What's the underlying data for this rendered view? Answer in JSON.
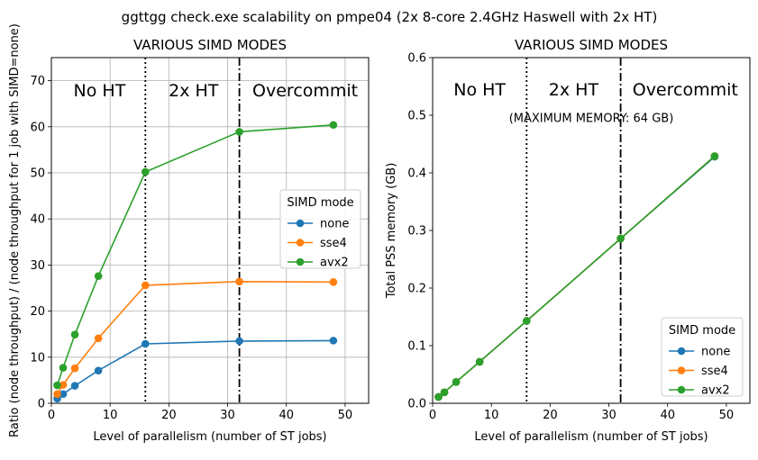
{
  "suptitle": "ggttgg check.exe scalability on pmpe04 (2x 8-core 2.4GHz Haswell with 2x HT)",
  "colors": {
    "none": "#1f77b4",
    "sse4": "#ff7f0e",
    "avx2": "#2ca02c"
  },
  "chart_data": [
    {
      "type": "line",
      "title": "VARIOUS SIMD MODES",
      "xlabel": "Level of parallelism (number of ST jobs)",
      "ylabel": "Ratio (node throughput) / (node throughput for 1 job with SIMD=none)",
      "xlim": [
        0,
        54
      ],
      "ylim": [
        0,
        75
      ],
      "xticks": [
        0,
        10,
        20,
        30,
        40,
        50
      ],
      "yticks": [
        0,
        10,
        20,
        30,
        40,
        50,
        60,
        70
      ],
      "grid": true,
      "legend": {
        "title": "SIMD mode",
        "position": "center-right"
      },
      "vlines": [
        {
          "x": 16,
          "style": "dotted"
        },
        {
          "x": 32,
          "style": "dashdot"
        }
      ],
      "region_labels": [
        {
          "text": "No HT",
          "x": 8.2,
          "y": 68
        },
        {
          "text": "2x HT",
          "x": 24.2,
          "y": 68
        },
        {
          "text": "Overcommit",
          "x": 43.2,
          "y": 68
        }
      ],
      "annotations": [],
      "series": [
        {
          "name": "none",
          "x": [
            1,
            2,
            4,
            8,
            16,
            32,
            48
          ],
          "y": [
            1.0,
            2.0,
            3.8,
            7.1,
            12.9,
            13.5,
            13.6
          ]
        },
        {
          "name": "sse4",
          "x": [
            1,
            2,
            4,
            8,
            16,
            32,
            48
          ],
          "y": [
            2.0,
            4.0,
            7.6,
            14.1,
            25.6,
            26.4,
            26.3
          ]
        },
        {
          "name": "avx2",
          "x": [
            1,
            2,
            4,
            8,
            16,
            32,
            48
          ],
          "y": [
            3.9,
            7.7,
            14.9,
            27.6,
            50.2,
            58.9,
            60.4
          ]
        }
      ]
    },
    {
      "type": "line",
      "title": "VARIOUS SIMD MODES",
      "xlabel": "Level of parallelism (number of ST jobs)",
      "ylabel": "Total PSS memory (GB)",
      "xlim": [
        0,
        54
      ],
      "ylim": [
        0,
        0.6
      ],
      "xticks": [
        0,
        10,
        20,
        30,
        40,
        50
      ],
      "yticks": [
        0.0,
        0.1,
        0.2,
        0.3,
        0.4,
        0.5,
        0.6
      ],
      "ytick_labels": [
        "0.0",
        "0.1",
        "0.2",
        "0.3",
        "0.4",
        "0.5",
        "0.6"
      ],
      "grid": false,
      "legend": {
        "title": "SIMD mode",
        "position": "lower-right"
      },
      "vlines": [
        {
          "x": 16,
          "style": "dotted"
        },
        {
          "x": 32,
          "style": "dashdot"
        }
      ],
      "region_labels": [
        {
          "text": "No HT",
          "x": 8.0,
          "y": 0.545
        },
        {
          "text": "2x HT",
          "x": 24.0,
          "y": 0.545
        },
        {
          "text": "Overcommit",
          "x": 43.0,
          "y": 0.545
        }
      ],
      "annotations": [
        {
          "text": "(MAXIMUM MEMORY: 64 GB)",
          "x": 27.0,
          "y": 0.495
        }
      ],
      "series": [
        {
          "name": "none",
          "x": [
            1,
            2,
            4,
            8,
            16,
            32,
            48
          ],
          "y": [
            0.011,
            0.019,
            0.037,
            0.072,
            0.143,
            0.286,
            0.428
          ]
        },
        {
          "name": "sse4",
          "x": [
            1,
            2,
            4,
            8,
            16,
            32,
            48
          ],
          "y": [
            0.011,
            0.019,
            0.037,
            0.072,
            0.143,
            0.286,
            0.429
          ]
        },
        {
          "name": "avx2",
          "x": [
            1,
            2,
            4,
            8,
            16,
            32,
            48
          ],
          "y": [
            0.011,
            0.019,
            0.037,
            0.072,
            0.143,
            0.286,
            0.429
          ]
        }
      ]
    }
  ]
}
